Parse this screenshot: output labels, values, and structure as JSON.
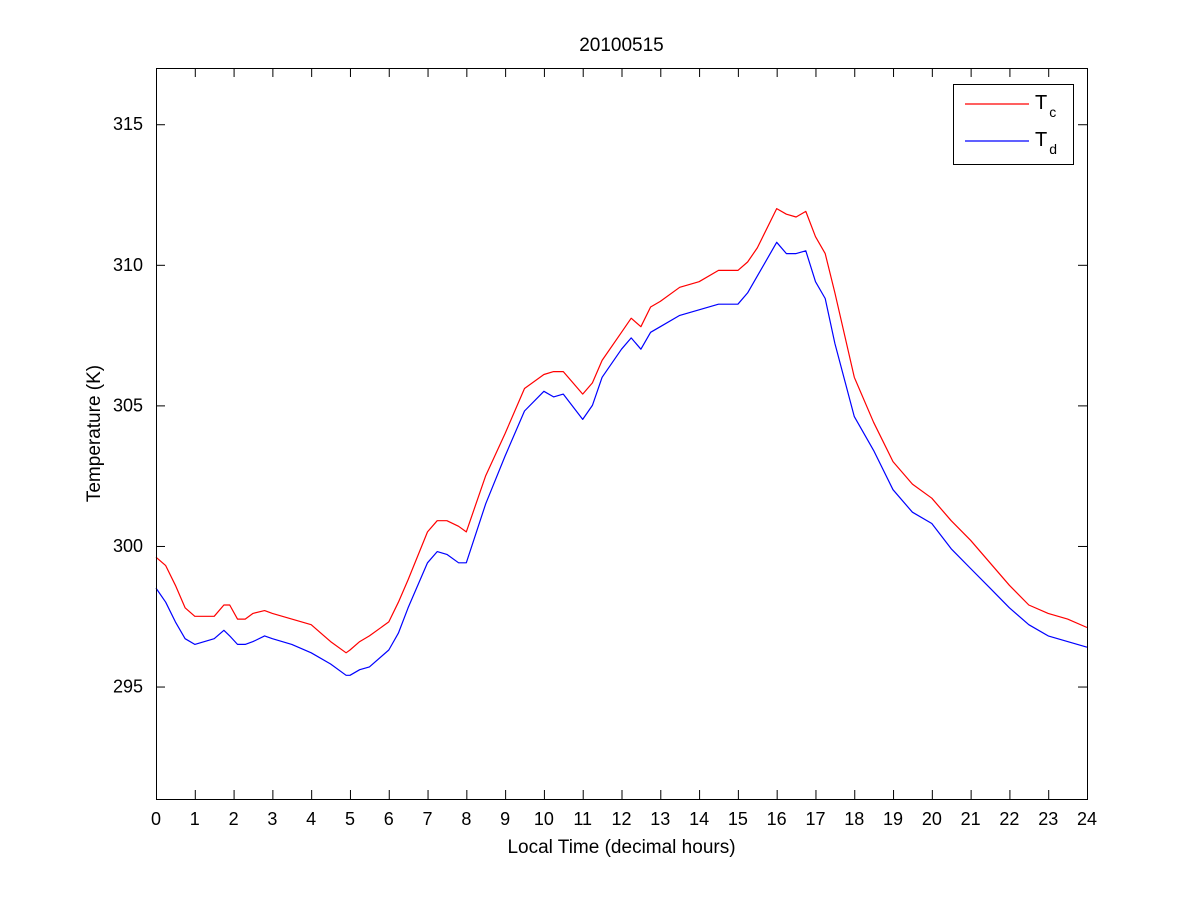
{
  "chart_data": {
    "type": "line",
    "title": "20100515",
    "xlabel": "Local Time (decimal hours)",
    "ylabel": "Temperature (K)",
    "xlim": [
      0,
      24
    ],
    "ylim": [
      291,
      317
    ],
    "xticks": [
      0,
      1,
      2,
      3,
      4,
      5,
      6,
      7,
      8,
      9,
      10,
      11,
      12,
      13,
      14,
      15,
      16,
      17,
      18,
      19,
      20,
      21,
      22,
      23,
      24
    ],
    "yticks": [
      295,
      300,
      305,
      310,
      315
    ],
    "grid": false,
    "legend": {
      "position": "top-right"
    },
    "series": [
      {
        "name": "T_c",
        "label_main": "T",
        "label_sub": "c",
        "color": "#ff0000",
        "x": [
          0,
          0.25,
          0.5,
          0.75,
          1,
          1.5,
          1.75,
          1.9,
          2.1,
          2.3,
          2.5,
          2.8,
          3,
          3.5,
          4,
          4.5,
          4.9,
          5,
          5.25,
          5.5,
          6,
          6.25,
          6.5,
          7,
          7.25,
          7.5,
          7.8,
          8,
          8.5,
          9,
          9.5,
          10,
          10.25,
          10.5,
          11,
          11.25,
          11.5,
          12,
          12.25,
          12.5,
          12.75,
          13,
          13.5,
          14,
          14.5,
          15,
          15.25,
          15.5,
          16,
          16.25,
          16.5,
          16.75,
          17,
          17.25,
          17.5,
          18,
          18.5,
          19,
          19.5,
          20,
          20.5,
          21,
          21.5,
          22,
          22.5,
          23,
          23.5,
          24
        ],
        "y": [
          299.6,
          299.3,
          298.6,
          297.8,
          297.5,
          297.5,
          297.9,
          297.9,
          297.4,
          297.4,
          297.6,
          297.7,
          297.6,
          297.4,
          297.2,
          296.6,
          296.2,
          296.3,
          296.6,
          296.8,
          297.3,
          298.0,
          298.8,
          300.5,
          300.9,
          300.9,
          300.7,
          300.5,
          302.5,
          304.0,
          305.6,
          306.1,
          306.2,
          306.2,
          305.4,
          305.8,
          306.6,
          307.6,
          308.1,
          307.8,
          308.5,
          308.7,
          309.2,
          309.4,
          309.8,
          309.8,
          310.1,
          310.6,
          312.0,
          311.8,
          311.7,
          311.9,
          311.0,
          310.4,
          309.0,
          306.0,
          304.4,
          303.0,
          302.2,
          301.7,
          300.9,
          300.2,
          299.4,
          298.6,
          297.9,
          297.6,
          297.4,
          297.1
        ]
      },
      {
        "name": "T_d",
        "label_main": "T",
        "label_sub": "d",
        "color": "#0000ff",
        "x": [
          0,
          0.25,
          0.5,
          0.75,
          1,
          1.5,
          1.75,
          1.9,
          2.1,
          2.3,
          2.5,
          2.8,
          3,
          3.5,
          4,
          4.5,
          4.9,
          5,
          5.25,
          5.5,
          6,
          6.25,
          6.5,
          7,
          7.25,
          7.5,
          7.8,
          8,
          8.5,
          9,
          9.5,
          10,
          10.25,
          10.5,
          11,
          11.25,
          11.5,
          12,
          12.25,
          12.5,
          12.75,
          13,
          13.5,
          14,
          14.5,
          15,
          15.25,
          15.5,
          16,
          16.25,
          16.5,
          16.75,
          17,
          17.25,
          17.5,
          18,
          18.5,
          19,
          19.5,
          20,
          20.5,
          21,
          21.5,
          22,
          22.5,
          23,
          23.5,
          24
        ],
        "y": [
          298.5,
          298.0,
          297.3,
          296.7,
          296.5,
          296.7,
          297.0,
          296.8,
          296.5,
          296.5,
          296.6,
          296.8,
          296.7,
          296.5,
          296.2,
          295.8,
          295.4,
          295.4,
          295.6,
          295.7,
          296.3,
          296.9,
          297.8,
          299.4,
          299.8,
          299.7,
          299.4,
          299.4,
          301.5,
          303.2,
          304.8,
          305.5,
          305.3,
          305.4,
          304.5,
          305.0,
          306.0,
          307.0,
          307.4,
          307.0,
          307.6,
          307.8,
          308.2,
          308.4,
          308.6,
          308.6,
          309.0,
          309.6,
          310.8,
          310.4,
          310.4,
          310.5,
          309.4,
          308.8,
          307.2,
          304.6,
          303.4,
          302.0,
          301.2,
          300.8,
          299.9,
          299.2,
          298.5,
          297.8,
          297.2,
          296.8,
          296.6,
          296.4
        ]
      }
    ]
  }
}
